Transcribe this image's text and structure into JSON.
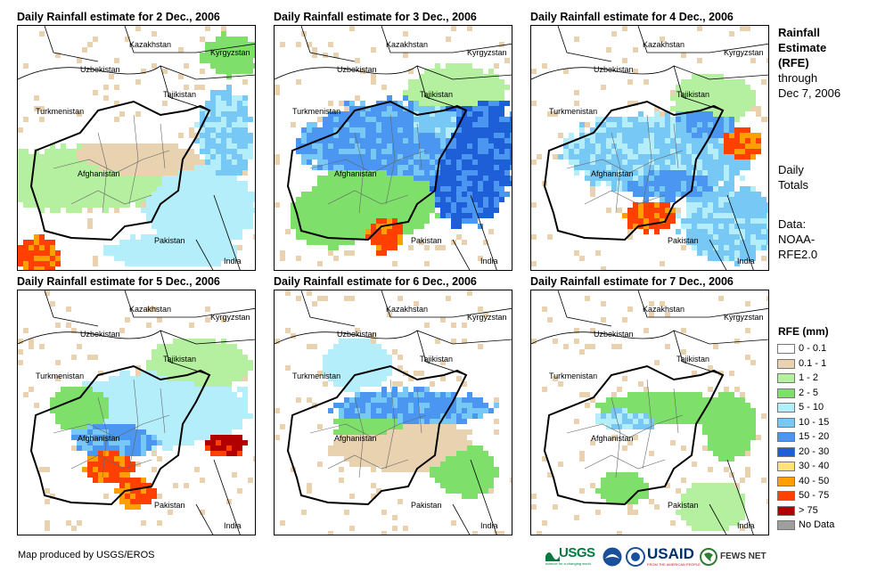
{
  "panels": [
    {
      "title": "Daily Rainfall estimate for 2 Dec., 2006",
      "seed": 2
    },
    {
      "title": "Daily Rainfall estimate for 3 Dec., 2006",
      "seed": 3
    },
    {
      "title": "Daily Rainfall estimate for 4 Dec., 2006",
      "seed": 4
    },
    {
      "title": "Daily Rainfall estimate for 5 Dec., 2006",
      "seed": 5
    },
    {
      "title": "Daily Rainfall estimate for 6 Dec., 2006",
      "seed": 6
    },
    {
      "title": "Daily Rainfall estimate for 7 Dec., 2006",
      "seed": 7
    }
  ],
  "places": {
    "kazakhstan": "Kazakhstan",
    "kyrgyzstan": "Kyrgyzstan",
    "uzbekistan": "Uzbekistan",
    "tajikistan": "Tajikistan",
    "turkmenistan": "Turkmenistan",
    "afghanistan": "Afghanistan",
    "pakistan": "Pakistan",
    "india": "India"
  },
  "sidebar": {
    "title_line1": "Rainfall",
    "title_line2": "Estimate",
    "title_line3": "(RFE)",
    "through": "through",
    "date": "Dec 7, 2006",
    "daily1": "Daily",
    "daily2": "Totals",
    "data1": "Data:",
    "data2": "NOAA-",
    "data3": "RFE2.0"
  },
  "legend": {
    "title": "RFE (mm)",
    "items": [
      {
        "label": "0 - 0.1",
        "color": "#ffffff"
      },
      {
        "label": "0.1 - 1",
        "color": "#e8d2b0"
      },
      {
        "label": "1 - 2",
        "color": "#b5f0a0"
      },
      {
        "label": "2 - 5",
        "color": "#7ee06a"
      },
      {
        "label": "5 - 10",
        "color": "#b4eefa"
      },
      {
        "label": "10 - 15",
        "color": "#78c8f5"
      },
      {
        "label": "15 - 20",
        "color": "#4a96f0"
      },
      {
        "label": "20 - 30",
        "color": "#1e5fd8"
      },
      {
        "label": "30 - 40",
        "color": "#ffe27a"
      },
      {
        "label": "40 - 50",
        "color": "#ffa000"
      },
      {
        "label": "50 - 75",
        "color": "#ff4000"
      },
      {
        "label": "> 75",
        "color": "#b00000"
      },
      {
        "label": "No Data",
        "color": "#9e9e9e"
      }
    ]
  },
  "footer": {
    "credit": "Map produced by USGS/EROS"
  },
  "logos": {
    "usgs": "USGS",
    "usgs_tag": "science for a changing world",
    "usaid": "USAID",
    "usaid_tag": "FROM THE AMERICAN PEOPLE",
    "fews": "FEWS NET"
  }
}
